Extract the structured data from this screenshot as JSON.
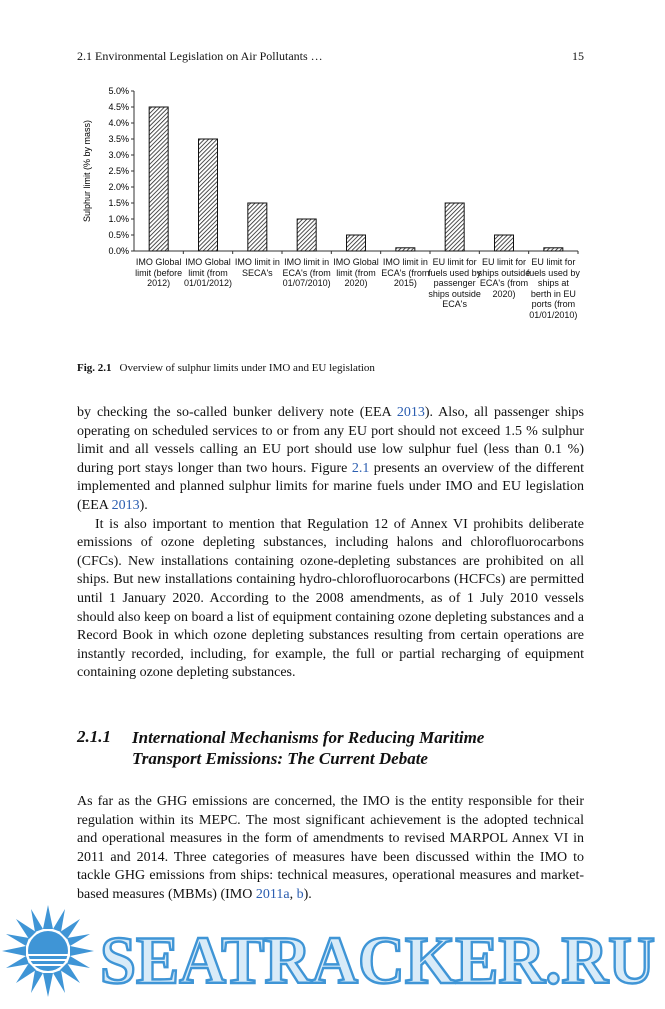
{
  "header": {
    "section": "2.1   Environmental Legislation on Air Pollutants …",
    "page": "15"
  },
  "chart_data": {
    "type": "bar",
    "ylabel": "Sulphur limit (% by mass)",
    "categories": [
      "IMO Global limit (before 2012)",
      "IMO Global limit (from 01/01/2012)",
      "IMO limit in SECA's",
      "IMO limit in ECA's (from 01/07/2010)",
      "IMO Global limit (from 2020)",
      "IMO limit in ECA's (from 2015)",
      "EU limit for fuels used by passenger ships outside ECA's",
      "EU limit for ships outside ECA's (from 2020)",
      "EU limit for fuels used by ships at berth in EU ports (from 01/01/2010)"
    ],
    "values": [
      4.5,
      3.5,
      1.5,
      1.0,
      0.5,
      0.1,
      1.5,
      0.5,
      0.1
    ],
    "ylim": [
      0,
      5
    ],
    "yticks": [
      {
        "value": 0,
        "label": "0.0%"
      },
      {
        "value": 0.5,
        "label": "0.5%"
      },
      {
        "value": 1,
        "label": "1.0%"
      },
      {
        "value": 1.5,
        "label": "1.5%"
      },
      {
        "value": 2,
        "label": "2.0%"
      },
      {
        "value": 2.5,
        "label": "2.5%"
      },
      {
        "value": 3,
        "label": "3.0%"
      },
      {
        "value": 3.5,
        "label": "3.5%"
      },
      {
        "value": 4,
        "label": "4.0%"
      },
      {
        "value": 4.5,
        "label": "4.5%"
      },
      {
        "value": 5,
        "label": "5.0%"
      }
    ]
  },
  "figure_caption": {
    "label": "Fig. 2.1",
    "text": "Overview of sulphur limits under IMO and EU legislation"
  },
  "paragraphs": [
    [
      {
        "text": "by checking the so-called bunker delivery note (EEA "
      },
      {
        "link": "2013"
      },
      {
        "text": "). Also, all passenger ships operating on scheduled services to or from any EU port should not exceed 1.5 % sulphur limit and all vessels calling an EU port should use low sulphur fuel (less than 0.1 %) during port stays longer than two hours. Figure "
      },
      {
        "link": "2.1"
      },
      {
        "text": " presents an overview of the different implemented and planned sulphur limits for marine fuels under IMO and EU legislation (EEA "
      },
      {
        "link": "2013"
      },
      {
        "text": ")."
      }
    ],
    [
      {
        "text": "It is also important to mention that Regulation 12 of Annex VI prohibits deliberate emissions of ozone depleting substances, including halons and chlorofluorocarbons (CFCs). New installations containing ozone-depleting substances are prohibited on all ships. But new installations containing hydro-chlorofluorocarbons (HCFCs) are permitted until 1 January 2020. According to the 2008 amendments, as of 1 July 2010 vessels should also keep on board a list of equipment containing ozone depleting substances and a Record Book in which ozone depleting substances resulting from certain operations are instantly recorded, including, for example, the full or partial recharging of equipment containing ozone depleting substances."
      }
    ]
  ],
  "section": {
    "number": "2.1.1",
    "title": "International Mechanisms for Reducing Maritime Transport Emissions: The Current Debate"
  },
  "section_paragraphs": [
    [
      {
        "text": "As far as the GHG emissions are concerned, the IMO is the entity responsible for their regulation within its MEPC. The most significant achievement is the adopted technical and operational measures in the form of amendments to revised MARPOL Annex VI in 2011 and 2014. Three categories of measures have been discussed within the IMO to tackle GHG emissions from ships: technical measures, operational measures and market-based measures (MBMs) (IMO "
      },
      {
        "link": "2011a"
      },
      {
        "text": ", "
      },
      {
        "link": "b"
      },
      {
        "text": ")."
      }
    ]
  ],
  "watermark": "SEATRACKER.RU"
}
